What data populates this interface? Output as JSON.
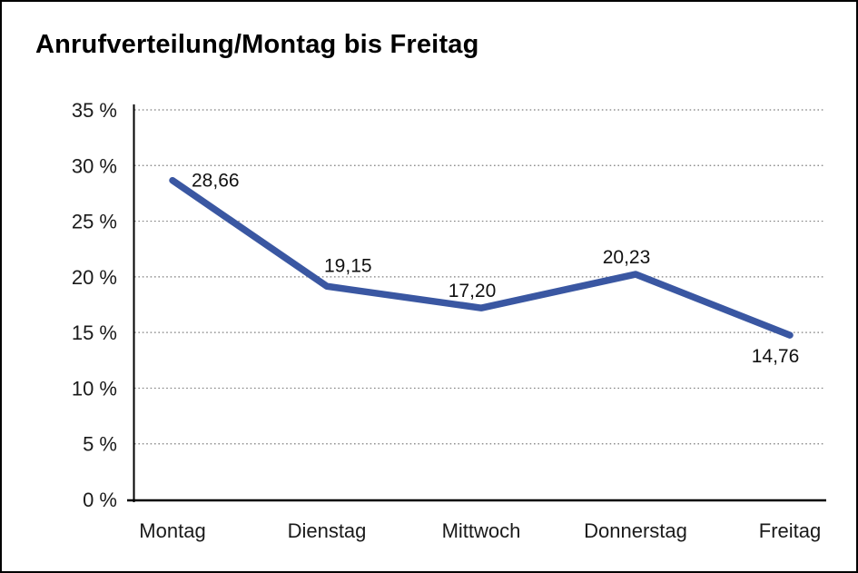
{
  "chart_data": {
    "type": "line",
    "title": "Anrufverteilung/Montag bis Freitag",
    "categories": [
      "Montag",
      "Dienstag",
      "Mittwoch",
      "Donnerstag",
      "Freitag"
    ],
    "series": [
      {
        "name": "Anrufverteilung",
        "values": [
          28.66,
          19.15,
          17.2,
          20.23,
          14.76
        ]
      }
    ],
    "value_labels": [
      "28,66",
      "19,15",
      "17,20",
      "20,23",
      "14,76"
    ],
    "value_label_positions": [
      "right",
      "above-right",
      "above",
      "above",
      "below"
    ],
    "xlabel": "",
    "ylabel": "",
    "ylim": [
      0,
      35
    ],
    "ytick_step": 5,
    "ytick_suffix": " %",
    "ytick_labels": [
      "0 %",
      "5 %",
      "10 %",
      "15 %",
      "20 %",
      "25 %",
      "30 %",
      "35 %"
    ],
    "grid": "horizontal-dotted",
    "legend_position": "none",
    "line_color": "#3a57a2",
    "grid_color": "#7f7f7f",
    "axis_color": "#000000",
    "text_color": "#1a1a1a",
    "background_color": "#ffffff",
    "frame_border_color": "#000000"
  }
}
